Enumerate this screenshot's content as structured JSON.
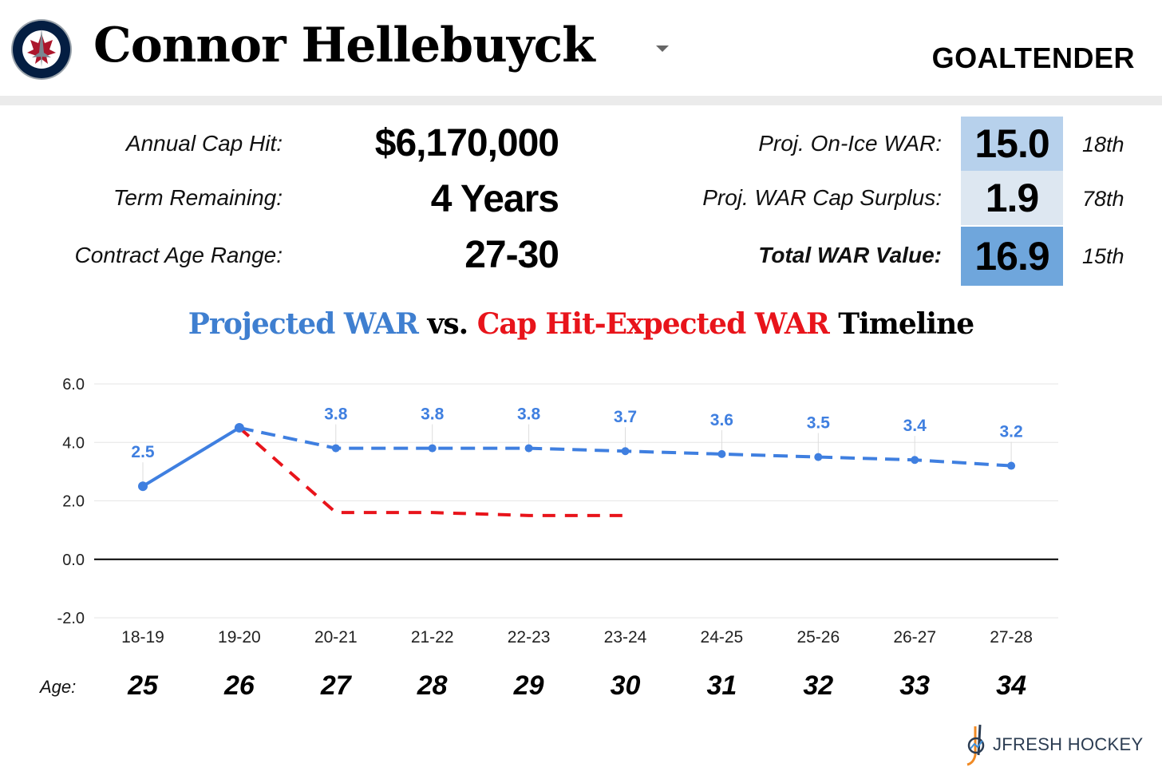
{
  "header": {
    "player_name": "Connor Hellebuyck",
    "position": "GOALTENDER",
    "team_logo": "winnipeg-jets-logo"
  },
  "contract": {
    "cap_hit_label": "Annual Cap Hit:",
    "cap_hit": "$6,170,000",
    "term_label": "Term Remaining:",
    "term": "4 Years",
    "age_range_label": "Contract Age Range:",
    "age_range": "27-30"
  },
  "war": {
    "on_ice_label": "Proj. On-Ice WAR:",
    "on_ice": "15.0",
    "on_ice_rank": "18th",
    "surplus_label": "Proj. WAR Cap Surplus:",
    "surplus": "1.9",
    "surplus_rank": "78th",
    "total_label": "Total WAR Value:",
    "total": "16.9",
    "total_rank": "15th",
    "colors": {
      "on_ice": "#b7d1ec",
      "surplus": "#dde7f1",
      "total": "#6fa6dc"
    }
  },
  "chart_data": {
    "type": "line",
    "title_parts": [
      "Projected WAR",
      " vs. ",
      "Cap Hit-Expected WAR",
      " Timeline"
    ],
    "categories": [
      "18-19",
      "19-20",
      "20-21",
      "21-22",
      "22-23",
      "23-24",
      "24-25",
      "25-26",
      "26-27",
      "27-28"
    ],
    "ages": [
      "25",
      "26",
      "27",
      "28",
      "29",
      "30",
      "31",
      "32",
      "33",
      "34"
    ],
    "age_label": "Age:",
    "ylim": [
      -2,
      6
    ],
    "yticks": [
      "-2.0",
      "0.0",
      "2.0",
      "4.0",
      "6.0"
    ],
    "grid": true,
    "series": [
      {
        "name": "Projected WAR",
        "color": "#3f7fe0",
        "values": [
          2.5,
          4.5,
          3.8,
          3.8,
          3.8,
          3.7,
          3.6,
          3.5,
          3.4,
          3.2
        ],
        "labels": [
          "2.5",
          "",
          "3.8",
          "3.8",
          "3.8",
          "3.7",
          "3.6",
          "3.5",
          "3.4",
          "3.2"
        ],
        "solid_until": 1
      },
      {
        "name": "Cap Hit-Expected WAR",
        "color": "#e8141b",
        "values": [
          null,
          4.5,
          1.6,
          1.6,
          1.5,
          1.5,
          null,
          null,
          null,
          null
        ]
      }
    ]
  },
  "footer": {
    "brand": "JFRESH HOCKEY"
  }
}
